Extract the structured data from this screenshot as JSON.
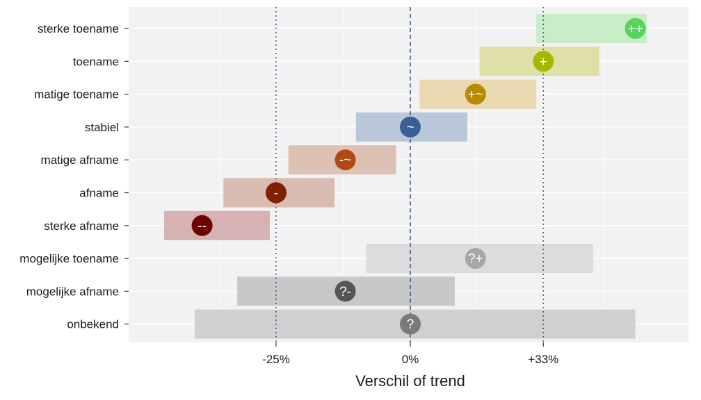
{
  "chart_data": {
    "type": "interval",
    "xlabel": "Verschil of trend",
    "x_scale": "log",
    "x_ticks": [
      {
        "value": 0.75,
        "label": "-25%"
      },
      {
        "value": 1.0,
        "label": "0%"
      },
      {
        "value": 1.33,
        "label": "+33%"
      }
    ],
    "xlim": [
      0.59,
      1.72
    ],
    "reference_lines": [
      {
        "value": 1.0,
        "style": "dashed",
        "color": "#3a5f8f"
      },
      {
        "value": 0.75,
        "style": "dotted",
        "color": "#3a5f8f"
      },
      {
        "value": 1.33,
        "style": "dotted",
        "color": "#3a5f8f"
      }
    ],
    "background_color": "#f2f2f2",
    "grid": true,
    "categories": [
      {
        "label": "sterke toename",
        "symbol": "++",
        "color": "#57d45a",
        "band_color": "#c9edc6",
        "estimate": 1.62,
        "lower": 1.31,
        "upper": 1.66
      },
      {
        "label": "toename",
        "symbol": "+",
        "color": "#a5b800",
        "band_color": "#dfe0a8",
        "estimate": 1.33,
        "lower": 1.16,
        "upper": 1.5
      },
      {
        "label": "matige toename",
        "symbol": "+~",
        "color": "#b88a00",
        "band_color": "#e9d8b0",
        "estimate": 1.15,
        "lower": 1.02,
        "upper": 1.31
      },
      {
        "label": "stabiel",
        "symbol": "~",
        "color": "#3a5f95",
        "band_color": "#b8c8da",
        "estimate": 1.0,
        "lower": 0.89,
        "upper": 1.13
      },
      {
        "label": "matige afname",
        "symbol": "-~",
        "color": "#b04a14",
        "band_color": "#ddc2b3",
        "estimate": 0.87,
        "lower": 0.77,
        "upper": 0.97
      },
      {
        "label": "afname",
        "symbol": "-",
        "color": "#7f2200",
        "band_color": "#d9bbb1",
        "estimate": 0.75,
        "lower": 0.67,
        "upper": 0.85
      },
      {
        "label": "sterke afname",
        "symbol": "--",
        "color": "#6e0000",
        "band_color": "#d7b2b2",
        "estimate": 0.64,
        "lower": 0.59,
        "upper": 0.74
      },
      {
        "label": "mogelijke toename",
        "symbol": "?+",
        "color": "#a6a6a6",
        "band_color": "#dcdcdc",
        "estimate": 1.15,
        "lower": 0.91,
        "upper": 1.48
      },
      {
        "label": "mogelijke afname",
        "symbol": "?-",
        "color": "#555555",
        "band_color": "#c8c8c8",
        "estimate": 0.87,
        "lower": 0.69,
        "upper": 1.1
      },
      {
        "label": "onbekend",
        "symbol": "?",
        "color": "#7a7a7a",
        "band_color": "#d0d0d0",
        "estimate": 1.0,
        "lower": 0.63,
        "upper": 1.62
      }
    ]
  }
}
